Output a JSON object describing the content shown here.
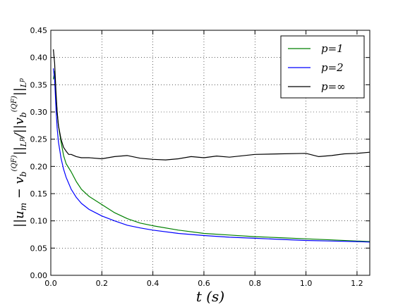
{
  "chart_data": {
    "type": "line",
    "xlabel": "t (s)",
    "ylabel": "||u_m − v_b^(QF)||_{L^p} / ||v_b^(QF)||_{L^p}",
    "xlim": [
      0.0,
      1.25
    ],
    "ylim": [
      0.0,
      0.45
    ],
    "xticks": [
      "0.0",
      "0.2",
      "0.4",
      "0.6",
      "0.8",
      "1.0",
      "1.2"
    ],
    "xtick_values": [
      0.0,
      0.2,
      0.4,
      0.6,
      0.8,
      1.0,
      1.2
    ],
    "yticks": [
      "0.00",
      "0.05",
      "0.10",
      "0.15",
      "0.20",
      "0.25",
      "0.30",
      "0.35",
      "0.40",
      "0.45"
    ],
    "ytick_values": [
      0.0,
      0.05,
      0.1,
      0.15,
      0.2,
      0.25,
      0.3,
      0.35,
      0.4,
      0.45
    ],
    "grid": true,
    "legend_position": "top-right",
    "series": [
      {
        "name": "p=1",
        "color": "#008000",
        "x": [
          0.01,
          0.015,
          0.02,
          0.025,
          0.03,
          0.04,
          0.05,
          0.06,
          0.08,
          0.1,
          0.12,
          0.15,
          0.2,
          0.25,
          0.3,
          0.35,
          0.4,
          0.5,
          0.6,
          0.7,
          0.8,
          0.9,
          1.0,
          1.1,
          1.2,
          1.25
        ],
        "y": [
          0.36,
          0.375,
          0.33,
          0.3,
          0.275,
          0.245,
          0.22,
          0.205,
          0.19,
          0.172,
          0.158,
          0.145,
          0.13,
          0.115,
          0.104,
          0.096,
          0.091,
          0.083,
          0.077,
          0.074,
          0.071,
          0.069,
          0.067,
          0.065,
          0.063,
          0.062
        ]
      },
      {
        "name": "p=2",
        "color": "#0000ff",
        "x": [
          0.01,
          0.015,
          0.02,
          0.025,
          0.03,
          0.04,
          0.05,
          0.06,
          0.08,
          0.1,
          0.12,
          0.15,
          0.2,
          0.25,
          0.3,
          0.35,
          0.4,
          0.5,
          0.6,
          0.7,
          0.8,
          0.9,
          1.0,
          1.1,
          1.2,
          1.25
        ],
        "y": [
          0.38,
          0.36,
          0.31,
          0.27,
          0.245,
          0.215,
          0.195,
          0.18,
          0.158,
          0.143,
          0.132,
          0.121,
          0.109,
          0.1,
          0.092,
          0.087,
          0.083,
          0.077,
          0.073,
          0.07,
          0.068,
          0.066,
          0.064,
          0.063,
          0.062,
          0.061
        ]
      },
      {
        "name": "p=∞",
        "color": "#000000",
        "x": [
          0.01,
          0.015,
          0.02,
          0.025,
          0.03,
          0.04,
          0.05,
          0.06,
          0.07,
          0.08,
          0.1,
          0.12,
          0.15,
          0.2,
          0.25,
          0.3,
          0.35,
          0.4,
          0.45,
          0.5,
          0.55,
          0.6,
          0.65,
          0.7,
          0.8,
          0.9,
          1.0,
          1.05,
          1.1,
          1.15,
          1.2,
          1.25
        ],
        "y": [
          0.415,
          0.39,
          0.34,
          0.3,
          0.275,
          0.25,
          0.235,
          0.228,
          0.222,
          0.222,
          0.218,
          0.216,
          0.216,
          0.214,
          0.218,
          0.22,
          0.215,
          0.213,
          0.212,
          0.214,
          0.218,
          0.216,
          0.219,
          0.217,
          0.222,
          0.223,
          0.224,
          0.218,
          0.22,
          0.223,
          0.224,
          0.226
        ]
      }
    ]
  }
}
